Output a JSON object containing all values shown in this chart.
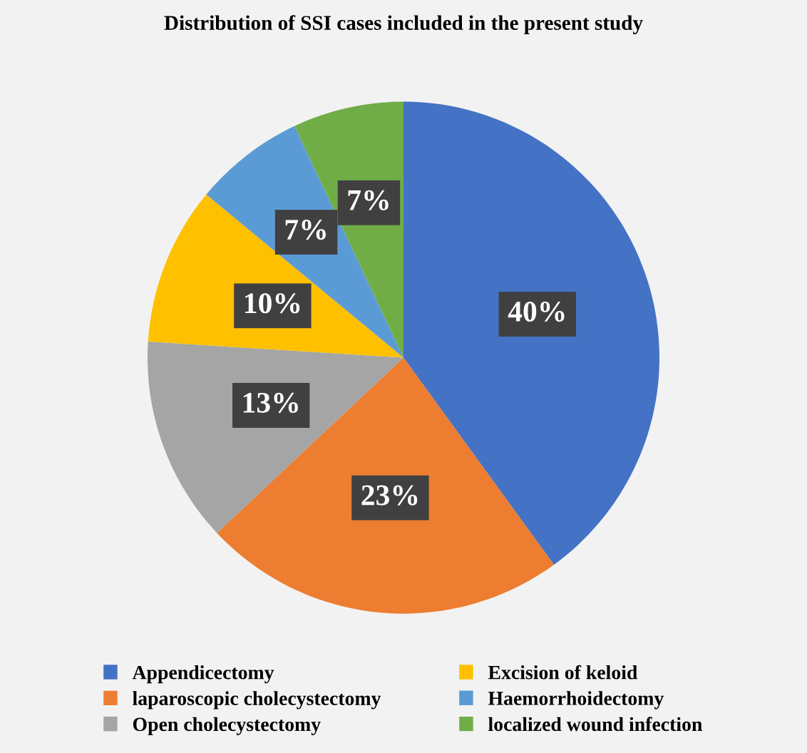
{
  "chart_data": {
    "type": "pie",
    "title": "Distribution of SSI cases included in the present study",
    "categories": [
      "Appendicectomy",
      "laparoscopic cholecystectomy",
      "Open cholecystectomy",
      "Excision of keloid",
      "Haemorrhoidectomy",
      "localized wound infection"
    ],
    "values": [
      40,
      23,
      13,
      10,
      7,
      7
    ],
    "value_labels": [
      "40%",
      "23%",
      "13%",
      "10%",
      "7%",
      "7%"
    ],
    "colors": [
      "#4472c4",
      "#ed7d31",
      "#a5a5a5",
      "#ffc000",
      "#5b9bd5",
      "#70ad47"
    ],
    "legend": "bottom"
  }
}
